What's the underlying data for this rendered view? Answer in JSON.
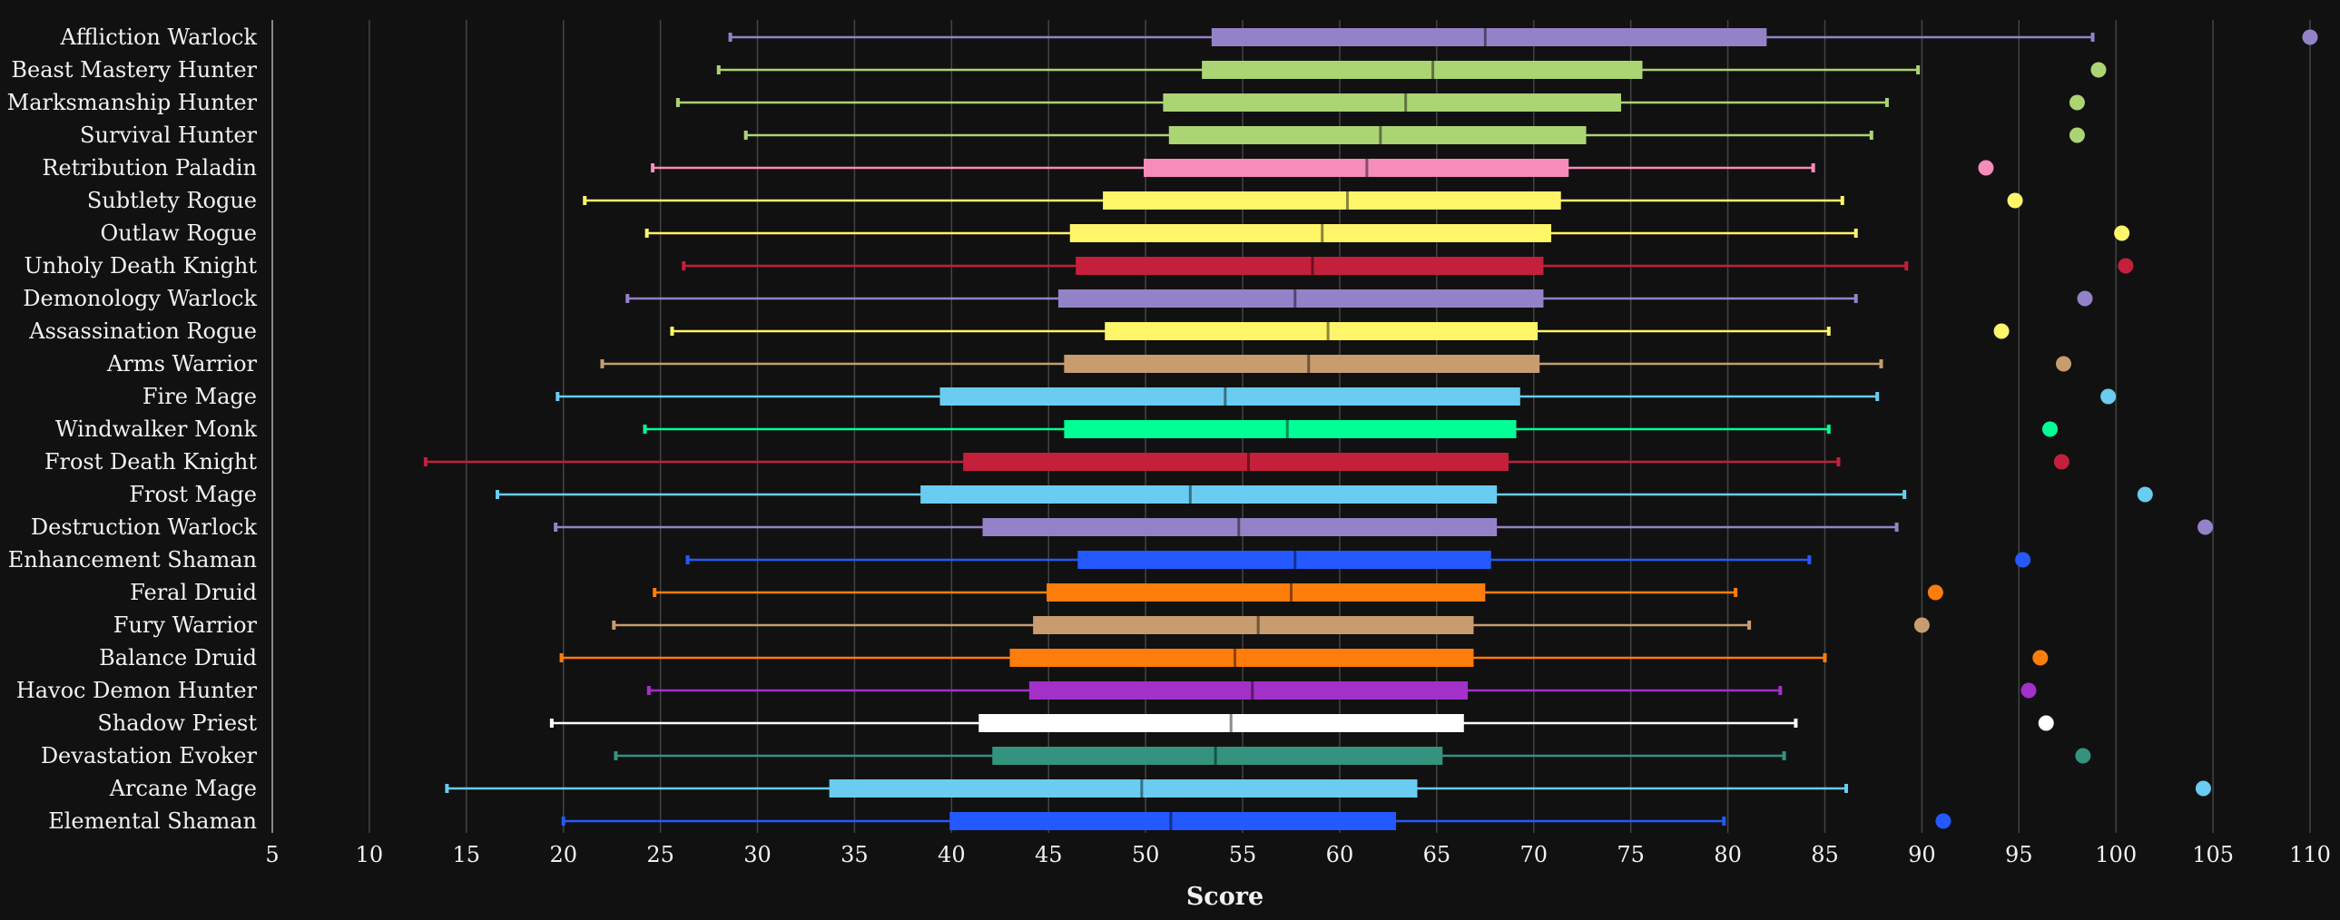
{
  "chart_data": {
    "type": "boxplot",
    "title": "",
    "xlabel": "Score",
    "ylabel": "",
    "xlim": [
      5,
      110
    ],
    "xticks": [
      5,
      10,
      15,
      20,
      25,
      30,
      35,
      40,
      45,
      50,
      55,
      60,
      65,
      70,
      75,
      80,
      85,
      90,
      95,
      100,
      105,
      110
    ],
    "grid": true,
    "legend": "none",
    "series": [
      {
        "name": "Affliction Warlock",
        "color": "#9482c9",
        "min": 28.6,
        "q1": 53.4,
        "median": 67.5,
        "q3": 82.0,
        "max": 98.8,
        "outlier": 110.0
      },
      {
        "name": "Beast Mastery Hunter",
        "color": "#abd473",
        "min": 28.0,
        "q1": 52.9,
        "median": 64.8,
        "q3": 75.6,
        "max": 89.8,
        "outlier": 99.1
      },
      {
        "name": "Marksmanship Hunter",
        "color": "#abd473",
        "min": 25.9,
        "q1": 50.9,
        "median": 63.4,
        "q3": 74.5,
        "max": 88.2,
        "outlier": 98.0
      },
      {
        "name": "Survival Hunter",
        "color": "#abd473",
        "min": 29.4,
        "q1": 51.2,
        "median": 62.1,
        "q3": 72.7,
        "max": 87.4,
        "outlier": 98.0
      },
      {
        "name": "Retribution Paladin",
        "color": "#f58cba",
        "min": 24.6,
        "q1": 49.9,
        "median": 61.4,
        "q3": 71.8,
        "max": 84.4,
        "outlier": 93.3
      },
      {
        "name": "Subtlety Rogue",
        "color": "#fff569",
        "min": 21.1,
        "q1": 47.8,
        "median": 60.4,
        "q3": 71.4,
        "max": 85.9,
        "outlier": 94.8
      },
      {
        "name": "Outlaw Rogue",
        "color": "#fff569",
        "min": 24.3,
        "q1": 46.1,
        "median": 59.1,
        "q3": 70.9,
        "max": 86.6,
        "outlier": 100.3
      },
      {
        "name": "Unholy Death Knight",
        "color": "#c41f3b",
        "min": 26.2,
        "q1": 46.4,
        "median": 58.6,
        "q3": 70.5,
        "max": 89.2,
        "outlier": 100.5
      },
      {
        "name": "Demonology Warlock",
        "color": "#9482c9",
        "min": 23.3,
        "q1": 45.5,
        "median": 57.7,
        "q3": 70.5,
        "max": 86.6,
        "outlier": 98.4
      },
      {
        "name": "Assassination Rogue",
        "color": "#fff569",
        "min": 25.6,
        "q1": 47.9,
        "median": 59.4,
        "q3": 70.2,
        "max": 85.2,
        "outlier": 94.1
      },
      {
        "name": "Arms Warrior",
        "color": "#c79c6e",
        "min": 22.0,
        "q1": 45.8,
        "median": 58.4,
        "q3": 70.3,
        "max": 87.9,
        "outlier": 97.3
      },
      {
        "name": "Fire Mage",
        "color": "#69ccf0",
        "min": 19.7,
        "q1": 39.4,
        "median": 54.1,
        "q3": 69.3,
        "max": 87.7,
        "outlier": 99.6
      },
      {
        "name": "Windwalker Monk",
        "color": "#00ff96",
        "min": 24.2,
        "q1": 45.8,
        "median": 57.3,
        "q3": 69.1,
        "max": 85.2,
        "outlier": 96.6
      },
      {
        "name": "Frost Death Knight",
        "color": "#c41f3b",
        "min": 12.9,
        "q1": 40.6,
        "median": 55.3,
        "q3": 68.7,
        "max": 85.7,
        "outlier": 97.2
      },
      {
        "name": "Frost Mage",
        "color": "#69ccf0",
        "min": 16.6,
        "q1": 38.4,
        "median": 52.3,
        "q3": 68.1,
        "max": 89.1,
        "outlier": 101.5
      },
      {
        "name": "Destruction Warlock",
        "color": "#9482c9",
        "min": 19.6,
        "q1": 41.6,
        "median": 54.8,
        "q3": 68.1,
        "max": 88.7,
        "outlier": 104.6
      },
      {
        "name": "Enhancement Shaman",
        "color": "#2459ff",
        "min": 26.4,
        "q1": 46.5,
        "median": 57.7,
        "q3": 67.8,
        "max": 84.2,
        "outlier": 95.2
      },
      {
        "name": "Feral Druid",
        "color": "#ff7d0a",
        "min": 24.7,
        "q1": 44.9,
        "median": 57.5,
        "q3": 67.5,
        "max": 80.4,
        "outlier": 90.7
      },
      {
        "name": "Fury Warrior",
        "color": "#c79c6e",
        "min": 22.6,
        "q1": 44.2,
        "median": 55.8,
        "q3": 66.9,
        "max": 81.1,
        "outlier": 90.0
      },
      {
        "name": "Balance Druid",
        "color": "#ff7d0a",
        "min": 19.9,
        "q1": 43.0,
        "median": 54.6,
        "q3": 66.9,
        "max": 85.0,
        "outlier": 96.1
      },
      {
        "name": "Havoc Demon Hunter",
        "color": "#a330c9",
        "min": 24.4,
        "q1": 44.0,
        "median": 55.5,
        "q3": 66.6,
        "max": 82.7,
        "outlier": 95.5
      },
      {
        "name": "Shadow Priest",
        "color": "#ffffff",
        "min": 19.4,
        "q1": 41.4,
        "median": 54.4,
        "q3": 66.4,
        "max": 83.5,
        "outlier": 96.4
      },
      {
        "name": "Devastation Evoker",
        "color": "#33937f",
        "min": 22.7,
        "q1": 42.1,
        "median": 53.6,
        "q3": 65.3,
        "max": 82.9,
        "outlier": 98.3
      },
      {
        "name": "Arcane Mage",
        "color": "#69ccf0",
        "min": 14.0,
        "q1": 33.7,
        "median": 49.8,
        "q3": 64.0,
        "max": 86.1,
        "outlier": 104.5
      },
      {
        "name": "Elemental Shaman",
        "color": "#2459ff",
        "min": 20.0,
        "q1": 39.9,
        "median": 51.3,
        "q3": 62.9,
        "max": 79.8,
        "outlier": 91.1
      }
    ]
  }
}
